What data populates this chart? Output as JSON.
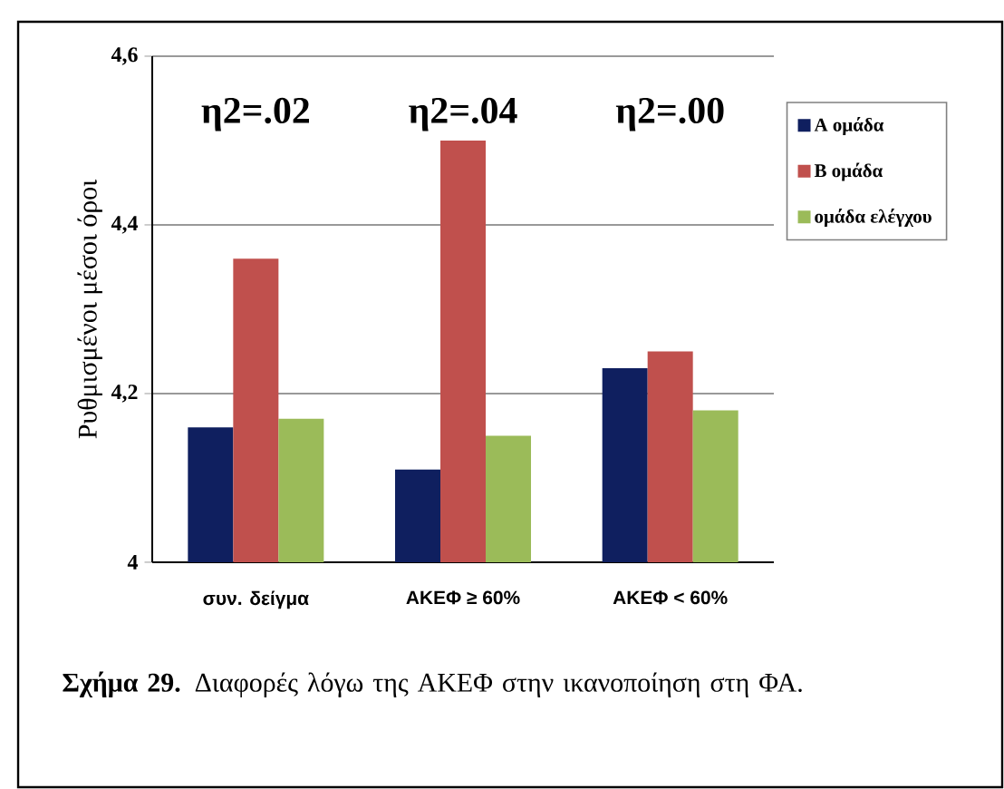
{
  "chart_data": {
    "type": "bar",
    "categories": [
      "συν. δείγμα",
      "ΑΚΕΦ ≥ 60%",
      "ΑΚΕΦ < 60%"
    ],
    "series": [
      {
        "name": "Α ομάδα",
        "color": "#0f1f5f",
        "values": [
          4.16,
          4.11,
          4.23
        ]
      },
      {
        "name": "Β ομάδα",
        "color": "#c0504d",
        "values": [
          4.36,
          4.5,
          4.25
        ]
      },
      {
        "name": "ομάδα ελέγχου",
        "color": "#9bbb59",
        "values": [
          4.17,
          4.15,
          4.18
        ]
      }
    ],
    "ylabel": "Ρυθμισμένοι  μέσοι όροι",
    "ylim": [
      4,
      4.6
    ],
    "yticks": [
      {
        "value": 4,
        "label": "4"
      },
      {
        "value": 4.2,
        "label": "4,2"
      },
      {
        "value": 4.4,
        "label": "4,4"
      },
      {
        "value": 4.6,
        "label": "4,6"
      }
    ],
    "grid": "y",
    "legend": "right",
    "annotations": [
      "η2=.02",
      "η2=.04",
      "η2=.00",
      "**Σχήμα 29.** Διαφορές λόγω της ΑΚΕΦ στην ικανοποίηση στη ΦΑ."
    ]
  }
}
